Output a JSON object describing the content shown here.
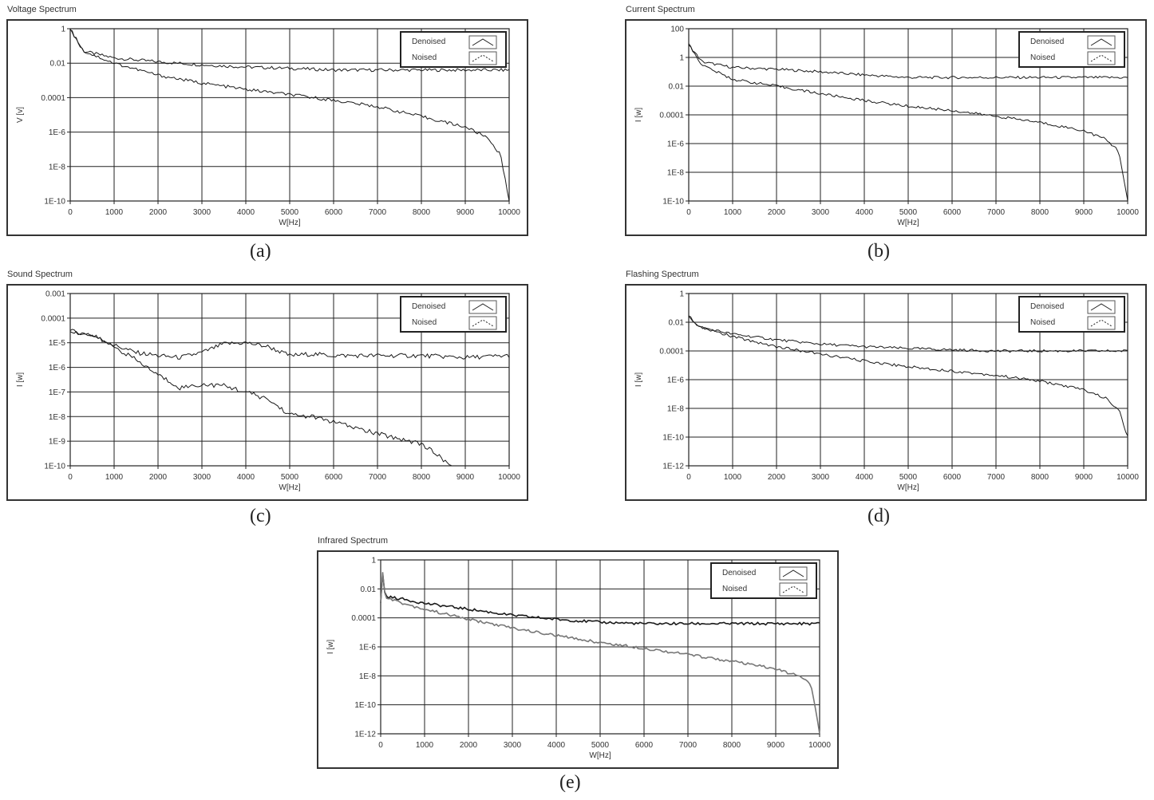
{
  "captions": [
    "(a)",
    "(b)",
    "(c)",
    "(d)",
    "(e)"
  ],
  "chart_data": [
    {
      "type": "line",
      "title": "Voltage Spectrum",
      "ylabel": "V [v]",
      "xlabel": "W[Hz]",
      "xlim": [
        0,
        10000
      ],
      "ylim": [
        1e-10,
        1
      ],
      "yscale": "log",
      "xticks": [
        "0",
        "1000",
        "2000",
        "3000",
        "4000",
        "5000",
        "6000",
        "7000",
        "8000",
        "9000",
        "10000"
      ],
      "yticks": [
        {
          "v": 1,
          "label": "1"
        },
        {
          "v": 0.01,
          "label": "0.01"
        },
        {
          "v": 0.0001,
          "label": "0.0001"
        },
        {
          "v": 1e-06,
          "label": "1E-6"
        },
        {
          "v": 1e-08,
          "label": "1E-8"
        },
        {
          "v": 1e-10,
          "label": "1E-10"
        }
      ],
      "grid": true,
      "legend_position": "top-right",
      "legend": [
        "Denoised",
        "Noised"
      ],
      "series": [
        {
          "name": "Denoised",
          "x": [
            0,
            300,
            1000,
            2000,
            3000,
            4000,
            5000,
            6000,
            7000,
            8000,
            9000,
            10000
          ],
          "y": [
            1,
            0.05,
            0.02,
            0.012,
            0.008,
            0.006,
            0.005,
            0.004,
            0.004,
            0.004,
            0.004,
            0.004
          ]
        },
        {
          "name": "Noised",
          "x": [
            0,
            300,
            1000,
            2000,
            3000,
            4000,
            5000,
            6000,
            7000,
            8000,
            9000,
            9500,
            9800,
            10000
          ],
          "y": [
            1,
            0.05,
            0.01,
            0.002,
            0.0007,
            0.0003,
            0.00015,
            7e-05,
            3e-05,
            8e-06,
            2e-06,
            5e-07,
            5e-08,
            1e-10
          ]
        }
      ]
    },
    {
      "type": "line",
      "title": "Current Spectrum",
      "ylabel": "I [w]",
      "xlabel": "W[Hz]",
      "xlim": [
        0,
        10000
      ],
      "ylim": [
        1e-10,
        100
      ],
      "yscale": "log",
      "xticks": [
        "0",
        "1000",
        "2000",
        "3000",
        "4000",
        "5000",
        "6000",
        "7000",
        "8000",
        "9000",
        "10000"
      ],
      "yticks": [
        {
          "v": 100,
          "label": "100"
        },
        {
          "v": 1,
          "label": "1"
        },
        {
          "v": 0.01,
          "label": "0.01"
        },
        {
          "v": 0.0001,
          "label": "0.0001"
        },
        {
          "v": 1e-06,
          "label": "1E-6"
        },
        {
          "v": 1e-08,
          "label": "1E-8"
        },
        {
          "v": 1e-10,
          "label": "1E-10"
        }
      ],
      "grid": true,
      "legend_position": "top-right",
      "legend": [
        "Denoised",
        "Noised"
      ],
      "series": [
        {
          "name": "Denoised",
          "x": [
            0,
            300,
            1000,
            2000,
            3000,
            4000,
            5000,
            6000,
            7000,
            8000,
            9000,
            10000
          ],
          "y": [
            8,
            0.5,
            0.2,
            0.15,
            0.1,
            0.06,
            0.04,
            0.04,
            0.04,
            0.04,
            0.04,
            0.04
          ]
        },
        {
          "name": "Noised",
          "x": [
            0,
            300,
            1000,
            2000,
            3000,
            4000,
            5000,
            6000,
            7000,
            8000,
            9000,
            9500,
            9800,
            10000
          ],
          "y": [
            8,
            0.3,
            0.03,
            0.01,
            0.003,
            0.001,
            0.0004,
            0.0002,
            8e-05,
            3e-05,
            8e-06,
            2e-06,
            3e-07,
            1e-10
          ]
        }
      ]
    },
    {
      "type": "line",
      "title": "Sound Spectrum",
      "ylabel": "I [w]",
      "xlabel": "W[Hz]",
      "xlim": [
        0,
        10000
      ],
      "ylim": [
        1e-10,
        0.001
      ],
      "yscale": "log",
      "xticks": [
        "0",
        "1000",
        "2000",
        "3000",
        "4000",
        "5000",
        "6000",
        "7000",
        "8000",
        "9000",
        "10000"
      ],
      "yticks": [
        {
          "v": 0.001,
          "label": "0.001"
        },
        {
          "v": 0.0001,
          "label": "0.0001"
        },
        {
          "v": 1e-05,
          "label": "1E-5"
        },
        {
          "v": 1e-06,
          "label": "1E-6"
        },
        {
          "v": 1e-07,
          "label": "1E-7"
        },
        {
          "v": 1e-08,
          "label": "1E-8"
        },
        {
          "v": 1e-09,
          "label": "1E-9"
        },
        {
          "v": 1e-10,
          "label": "1E-10"
        }
      ],
      "grid": true,
      "legend_position": "top-right",
      "legend": [
        "Denoised",
        "Noised"
      ],
      "series": [
        {
          "name": "Denoised",
          "x": [
            0,
            500,
            1000,
            1500,
            2000,
            2500,
            3000,
            3500,
            4000,
            4500,
            5000,
            5500,
            6000,
            7000,
            8000,
            9000,
            10000
          ],
          "y": [
            3e-05,
            2e-05,
            8e-06,
            4e-06,
            3e-06,
            2.5e-06,
            4e-06,
            9e-06,
            1e-05,
            7e-06,
            3e-06,
            3.5e-06,
            3e-06,
            3e-06,
            3e-06,
            2.5e-06,
            3e-06
          ]
        },
        {
          "name": "Noised",
          "x": [
            0,
            500,
            1000,
            1500,
            2000,
            2500,
            3000,
            3500,
            4000,
            4500,
            5000,
            5500,
            6000,
            7000,
            8000,
            8700
          ],
          "y": [
            3e-05,
            2e-05,
            7e-06,
            2e-06,
            5e-07,
            1.5e-07,
            2e-07,
            1.8e-07,
            1e-07,
            5e-08,
            1.2e-08,
            1e-08,
            6e-09,
            2e-09,
            8e-10,
            1e-10
          ]
        }
      ]
    },
    {
      "type": "line",
      "title": "Flashing Spectrum",
      "ylabel": "I [w]",
      "xlabel": "W[Hz]",
      "xlim": [
        0,
        10000
      ],
      "ylim": [
        1e-12,
        1
      ],
      "yscale": "log",
      "xticks": [
        "0",
        "1000",
        "2000",
        "3000",
        "4000",
        "5000",
        "6000",
        "7000",
        "8000",
        "9000",
        "10000"
      ],
      "yticks": [
        {
          "v": 1,
          "label": "1"
        },
        {
          "v": 0.01,
          "label": "0.01"
        },
        {
          "v": 0.0001,
          "label": "0.0001"
        },
        {
          "v": 1e-06,
          "label": "1E-6"
        },
        {
          "v": 1e-08,
          "label": "1E-8"
        },
        {
          "v": 1e-10,
          "label": "1E-10"
        },
        {
          "v": 1e-12,
          "label": "1E-12"
        }
      ],
      "grid": true,
      "legend_position": "top-right",
      "legend": [
        "Denoised",
        "Noised"
      ],
      "series": [
        {
          "name": "Denoised",
          "x": [
            0,
            200,
            1000,
            2000,
            3000,
            4000,
            5000,
            6000,
            7000,
            8000,
            9000,
            10000
          ],
          "y": [
            0.03,
            0.005,
            0.0015,
            0.0006,
            0.0003,
            0.0002,
            0.00015,
            0.00012,
            0.0001,
            0.0001,
            0.0001,
            0.0001
          ]
        },
        {
          "name": "Noised",
          "x": [
            0,
            200,
            1000,
            2000,
            3000,
            4000,
            5000,
            6000,
            7000,
            8000,
            9000,
            9500,
            9800,
            10000
          ],
          "y": [
            0.03,
            0.005,
            0.001,
            0.0002,
            6e-05,
            2e-05,
            8e-06,
            4e-06,
            2e-06,
            8e-07,
            2e-07,
            5e-08,
            8e-09,
            1e-10
          ]
        }
      ]
    },
    {
      "type": "line",
      "title": "Infrared Spectrum",
      "ylabel": "I [w]",
      "xlabel": "W[Hz]",
      "xlim": [
        0,
        10000
      ],
      "ylim": [
        1e-12,
        1
      ],
      "yscale": "log",
      "xticks": [
        "0",
        "1000",
        "2000",
        "3000",
        "4000",
        "5000",
        "6000",
        "7000",
        "8000",
        "9000",
        "10000"
      ],
      "yticks": [
        {
          "v": 1,
          "label": "1"
        },
        {
          "v": 0.01,
          "label": "0.01"
        },
        {
          "v": 0.0001,
          "label": "0.0001"
        },
        {
          "v": 1e-06,
          "label": "1E-6"
        },
        {
          "v": 1e-08,
          "label": "1E-8"
        },
        {
          "v": 1e-10,
          "label": "1E-10"
        },
        {
          "v": 1e-12,
          "label": "1E-12"
        }
      ],
      "grid": true,
      "legend_position": "top-right",
      "legend": [
        "Denoised",
        "Noised"
      ],
      "series": [
        {
          "name": "Denoised",
          "x": [
            0,
            50,
            100,
            500,
            1000,
            2000,
            3000,
            4000,
            5000,
            6000,
            7000,
            8000,
            9000,
            10000
          ],
          "y": [
            0.001,
            0.2,
            0.003,
            0.002,
            0.001,
            0.0004,
            0.00015,
            8e-05,
            5e-05,
            4e-05,
            4e-05,
            4e-05,
            4e-05,
            4e-05
          ]
        },
        {
          "name": "Noised",
          "x": [
            0,
            50,
            100,
            500,
            1000,
            2000,
            3000,
            4000,
            5000,
            6000,
            7000,
            8000,
            9000,
            9500,
            9800,
            10000
          ],
          "y": [
            0.001,
            0.2,
            0.003,
            0.001,
            0.0004,
            8e-05,
            2e-05,
            6e-06,
            2e-06,
            8e-07,
            3e-07,
            1e-07,
            3e-08,
            1e-08,
            3e-09,
            1e-12
          ]
        }
      ]
    }
  ]
}
